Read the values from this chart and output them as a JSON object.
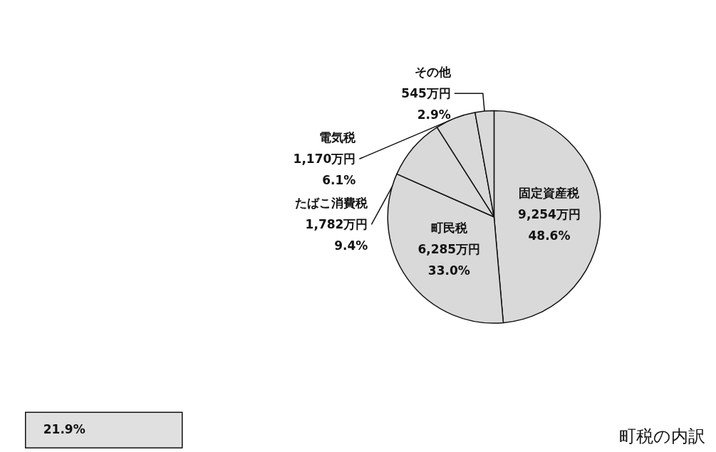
{
  "chart_data": {
    "type": "pie",
    "title": "町税の内訳",
    "categories": [
      "固定資産税",
      "町民税",
      "たばこ消費税",
      "電気税",
      "その他"
    ],
    "values": [
      9254,
      6285,
      1782,
      1170,
      545
    ],
    "colors": [
      "#d9d9d9",
      "#d9d9d9",
      "#d9d9d9",
      "#d9d9d9",
      "#d9d9d9"
    ],
    "value_labels": [
      "9,254万円\n48.6%",
      "6,285万円\n33.0%",
      "1,782万円\n9.4%",
      "1,170万円\n6.1%",
      "545万円\n2.9%"
    ],
    "annotations": [
      "21.9%"
    ]
  }
}
